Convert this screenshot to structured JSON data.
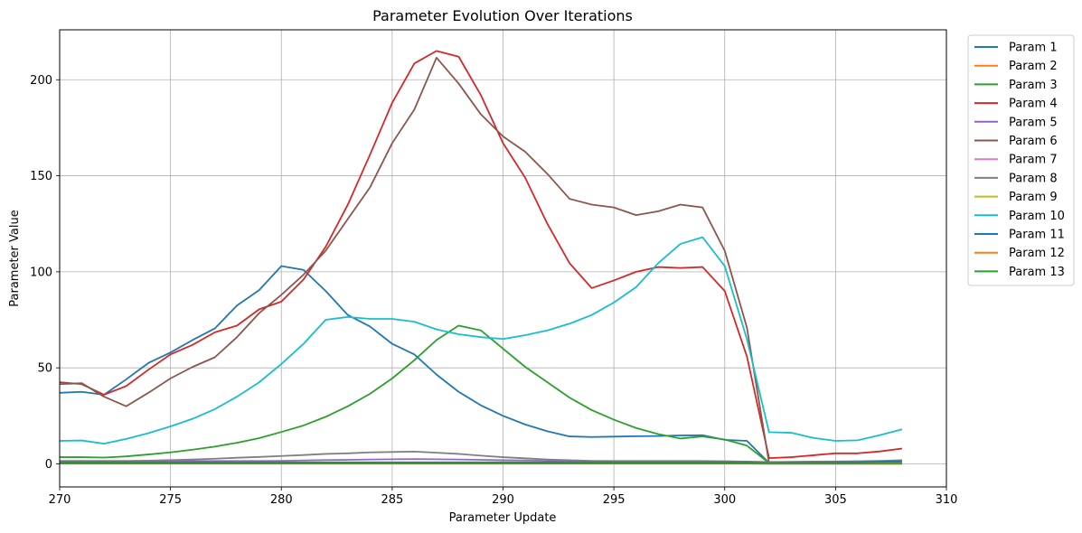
{
  "chart_data": {
    "type": "line",
    "title": "Parameter Evolution Over Iterations",
    "xlabel": "Parameter Update",
    "ylabel": "Parameter Value",
    "xlim": [
      270,
      310
    ],
    "ylim": [
      -12,
      226
    ],
    "xticks": [
      270,
      275,
      280,
      285,
      290,
      295,
      300,
      305,
      310
    ],
    "yticks": [
      0,
      50,
      100,
      150,
      200
    ],
    "grid": true,
    "legend_position": "outside-top-right",
    "x": [
      270,
      271,
      272,
      273,
      274,
      275,
      276,
      277,
      278,
      279,
      280,
      281,
      282,
      283,
      284,
      285,
      286,
      287,
      288,
      289,
      290,
      291,
      292,
      293,
      294,
      295,
      296,
      297,
      298,
      299,
      300,
      301,
      302,
      303,
      304,
      305,
      306,
      307,
      308
    ],
    "series": [
      {
        "name": "Param 1",
        "color": "#1f77b4",
        "values": [
          37,
          37.5,
          36,
          44,
          52.5,
          58,
          64.5,
          70.5,
          82.5,
          90.5,
          103,
          101,
          90,
          77.5,
          71.5,
          62.5,
          57,
          46.5,
          37.5,
          30.5,
          25,
          20.5,
          17,
          14.3,
          14,
          14.2,
          14.4,
          14.5,
          14.8,
          14.9,
          12.5,
          12,
          0.5,
          0.5,
          0.5,
          0.5,
          0.5,
          0.5,
          0.5
        ]
      },
      {
        "name": "Param 2",
        "color": "#ff7f0e",
        "values": [
          0.2,
          0.2,
          0.2,
          0.2,
          0.2,
          0.2,
          0.2,
          0.2,
          0.2,
          0.2,
          0.2,
          0.2,
          0.2,
          0.2,
          0.2,
          0.2,
          0.2,
          0.2,
          0.2,
          0.2,
          0.2,
          0.2,
          0.2,
          0.2,
          0.2,
          0.2,
          0.2,
          0.2,
          0.2,
          0.2,
          0.2,
          0.2,
          0.1,
          0.1,
          0.1,
          0.1,
          0.1,
          0.1,
          0.1
        ]
      },
      {
        "name": "Param 3",
        "color": "#2ca02c",
        "values": [
          3.5,
          3.5,
          3.3,
          3.9,
          4.9,
          6,
          7.4,
          9,
          11,
          13.4,
          16.6,
          20,
          24.5,
          30,
          36.5,
          44.5,
          54,
          64.5,
          72,
          69.5,
          60,
          50.5,
          42.5,
          34.5,
          28,
          23,
          18.7,
          15.5,
          13.2,
          14.3,
          12.7,
          9.5,
          0.5,
          0.5,
          0.5,
          0.5,
          0.5,
          0.5,
          0.5
        ]
      },
      {
        "name": "Param 4",
        "color": "#d62728",
        "values": [
          42.5,
          41.5,
          36,
          40.5,
          49,
          57,
          62,
          68.5,
          72,
          80.5,
          84.5,
          96,
          113,
          135,
          161,
          188,
          208.5,
          215,
          212,
          192,
          167,
          149,
          125,
          104.5,
          91.5,
          95.5,
          100,
          102.5,
          102,
          102.5,
          90,
          56,
          3,
          3.5,
          4.5,
          5.5,
          5.5,
          6.5,
          8
        ]
      },
      {
        "name": "Param 5",
        "color": "#9467bd",
        "values": [
          1.5,
          1.5,
          1.5,
          1.5,
          1.5,
          1.5,
          1.5,
          1.5,
          1.5,
          1.5,
          1.6,
          1.8,
          2,
          2.1,
          2.3,
          2.4,
          2.5,
          2.4,
          2.3,
          2.1,
          1.9,
          1.8,
          1.6,
          1.5,
          1.4,
          1.3,
          1.3,
          1.3,
          1.3,
          1.3,
          1.2,
          1,
          0.3,
          0.3,
          0.3,
          0.3,
          0.3,
          0.3,
          0.3
        ]
      },
      {
        "name": "Param 6",
        "color": "#8c564b",
        "values": [
          41.5,
          42,
          35,
          30,
          37,
          44.5,
          50.5,
          55.5,
          66,
          78.5,
          88,
          98.5,
          111,
          127.5,
          144,
          167,
          184.5,
          211.5,
          198,
          182,
          170.5,
          162.5,
          151,
          138,
          135,
          133.5,
          129.5,
          131.5,
          135,
          133.5,
          111,
          71,
          0.5,
          0.5,
          0.5,
          0.5,
          0.5,
          0.5,
          0.5
        ]
      },
      {
        "name": "Param 7",
        "color": "#e377c2",
        "values": [
          0.3,
          0.3,
          0.3,
          0.3,
          0.3,
          0.3,
          0.3,
          0.3,
          0.3,
          0.3,
          0.3,
          0.3,
          0.3,
          0.3,
          0.3,
          0.3,
          0.3,
          0.3,
          0.3,
          0.3,
          0.3,
          0.3,
          0.3,
          0.3,
          0.3,
          0.3,
          0.3,
          0.3,
          0.3,
          0.3,
          0.3,
          0.3,
          0.1,
          0.1,
          0.1,
          0.1,
          0.1,
          0.1,
          0.1
        ]
      },
      {
        "name": "Param 8",
        "color": "#7f7f7f",
        "values": [
          1.5,
          1.5,
          1.5,
          1.5,
          1.7,
          2,
          2.3,
          2.7,
          3.2,
          3.6,
          4.1,
          4.6,
          5.2,
          5.5,
          6,
          6.2,
          6.4,
          5.8,
          5.2,
          4.3,
          3.5,
          2.9,
          2.3,
          1.9,
          1.6,
          1.5,
          1.5,
          1.5,
          1.5,
          1.5,
          1.4,
          1.2,
          1,
          1.1,
          1.2,
          1.3,
          1.4,
          1.6,
          1.9
        ]
      },
      {
        "name": "Param 9",
        "color": "#bcbd22",
        "values": [
          0.4,
          0.4,
          0.4,
          0.4,
          0.4,
          0.4,
          0.4,
          0.4,
          0.4,
          0.4,
          0.4,
          0.4,
          0.4,
          0.4,
          0.4,
          0.4,
          0.4,
          0.4,
          0.4,
          0.4,
          0.4,
          0.4,
          0.4,
          0.4,
          0.4,
          0.4,
          0.4,
          0.4,
          0.4,
          0.4,
          0.4,
          0.4,
          0.2,
          0.2,
          0.2,
          0.2,
          0.2,
          0.2,
          0.2
        ]
      },
      {
        "name": "Param 10",
        "color": "#17becf",
        "values": [
          12,
          12.2,
          10.5,
          13,
          16,
          19.5,
          23.5,
          28.5,
          35,
          42.5,
          52,
          62.5,
          75,
          76.5,
          75.5,
          75.5,
          74,
          70,
          67.5,
          66,
          65,
          67,
          69.5,
          73,
          77.5,
          84,
          92,
          104.5,
          114.5,
          118,
          103,
          65,
          16.5,
          16.2,
          13.5,
          12,
          12.3,
          15,
          18
        ]
      },
      {
        "name": "Param 11",
        "color": "#1f77b4",
        "values": [
          0.8,
          0.8,
          0.8,
          0.8,
          0.8,
          0.8,
          0.8,
          0.8,
          0.8,
          0.8,
          0.8,
          0.8,
          0.8,
          0.8,
          0.8,
          0.8,
          0.8,
          0.8,
          0.8,
          0.8,
          0.8,
          0.8,
          0.8,
          0.8,
          0.8,
          0.8,
          0.8,
          0.8,
          0.8,
          0.8,
          0.8,
          0.8,
          0.5,
          0.6,
          0.7,
          0.8,
          0.9,
          1.1,
          1.4
        ]
      },
      {
        "name": "Param 12",
        "color": "#ff7f0e",
        "values": [
          0.1,
          0.1,
          0.1,
          0.1,
          0.1,
          0.1,
          0.1,
          0.1,
          0.1,
          0.1,
          0.1,
          0.1,
          0.1,
          0.1,
          0.1,
          0.1,
          0.1,
          0.1,
          0.1,
          0.1,
          0.1,
          0.1,
          0.1,
          0.1,
          0.1,
          0.1,
          0.1,
          0.1,
          0.1,
          0.1,
          0.1,
          0.1,
          0.1,
          0.1,
          0.1,
          0.1,
          0.1,
          0.1,
          0.1
        ]
      },
      {
        "name": "Param 13",
        "color": "#2ca02c",
        "values": [
          0.2,
          0.2,
          0.2,
          0.2,
          0.2,
          0.2,
          0.2,
          0.2,
          0.2,
          0.2,
          0.2,
          0.2,
          0.2,
          0.2,
          0.2,
          0.2,
          0.2,
          0.2,
          0.2,
          0.2,
          0.2,
          0.2,
          0.2,
          0.2,
          0.2,
          0.2,
          0.2,
          0.2,
          0.2,
          0.2,
          0.2,
          0.2,
          0.1,
          0.1,
          0.1,
          0.1,
          0.1,
          0.1,
          0.1
        ]
      }
    ]
  }
}
